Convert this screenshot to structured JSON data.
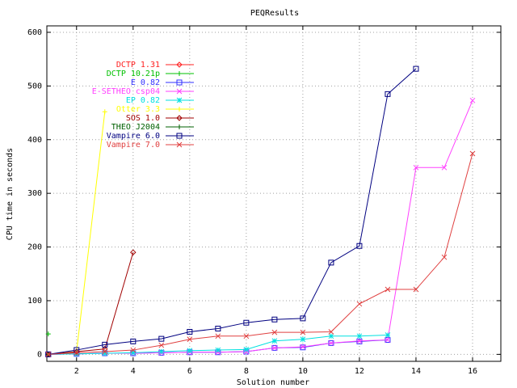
{
  "chart_data": {
    "type": "line",
    "title": "PEQResults",
    "x_label": "Solution number",
    "y_label": "CPU time in seconds",
    "xlim": [
      0.95,
      17
    ],
    "ylim": [
      -13,
      612
    ],
    "xticks": [
      2,
      4,
      6,
      8,
      10,
      12,
      14,
      16
    ],
    "yticks": [
      0,
      100,
      200,
      300,
      400,
      500,
      600
    ],
    "grid": true,
    "legend": "upper-left",
    "series": [
      {
        "name": "DCTP 1.31",
        "color": "#ff2020",
        "marker": "diamond",
        "x": [
          1,
          2
        ],
        "values": [
          0,
          2
        ]
      },
      {
        "name": "DCTP 10.21p",
        "color": "#00c000",
        "marker": "plus",
        "x": [
          1
        ],
        "values": [
          38
        ]
      },
      {
        "name": "E 0.82",
        "color": "#3030ff",
        "marker": "square",
        "x": [
          1,
          2,
          3,
          4,
          5,
          6,
          7,
          8,
          9,
          10,
          11,
          12,
          13
        ],
        "values": [
          0,
          1,
          2,
          2,
          3,
          4,
          4,
          5,
          12,
          13,
          21,
          24,
          27
        ]
      },
      {
        "name": "E-SETHEO csp04",
        "color": "#ff40ff",
        "marker": "cross",
        "x": [
          1,
          2,
          3,
          4,
          5,
          6,
          7,
          8,
          9,
          10,
          11,
          12,
          13,
          14,
          15,
          16
        ],
        "values": [
          0,
          1,
          2,
          2,
          3,
          4,
          4,
          5,
          12,
          14,
          21,
          25,
          27,
          348,
          348,
          473
        ]
      },
      {
        "name": "EP 0.82",
        "color": "#00e0e0",
        "marker": "star",
        "x": [
          1,
          2,
          3,
          4,
          5,
          6,
          7,
          8,
          9,
          10,
          11,
          12,
          13
        ],
        "values": [
          0,
          1,
          2,
          3,
          5,
          7,
          8,
          9,
          25,
          28,
          34,
          34,
          36
        ]
      },
      {
        "name": "Otter 3.3",
        "color": "#ffff00",
        "marker": "plus",
        "x": [
          1,
          2,
          3
        ],
        "values": [
          0,
          5,
          452
        ]
      },
      {
        "name": "SOS 1.0",
        "color": "#a00000",
        "marker": "diamond",
        "x": [
          1,
          2,
          3,
          4
        ],
        "values": [
          0,
          5,
          10,
          190
        ]
      },
      {
        "name": "THEO J2004",
        "color": "#006000",
        "marker": "plus",
        "x": [
          1
        ],
        "values": [
          0
        ]
      },
      {
        "name": "Vampire 6.0",
        "color": "#000080",
        "marker": "square",
        "x": [
          1,
          2,
          3,
          4,
          5,
          6,
          7,
          8,
          9,
          10,
          11,
          12,
          13,
          14
        ],
        "values": [
          0,
          8,
          18,
          24,
          29,
          42,
          48,
          59,
          65,
          67,
          171,
          202,
          485,
          532
        ]
      },
      {
        "name": "Vampire 7.0",
        "color": "#e04040",
        "marker": "cross",
        "x": [
          1,
          2,
          3,
          4,
          5,
          6,
          7,
          8,
          9,
          10,
          11,
          12,
          13,
          14,
          15,
          16
        ],
        "values": [
          0,
          3,
          5,
          8,
          17,
          28,
          34,
          34,
          41,
          41,
          42,
          94,
          121,
          121,
          181,
          374
        ]
      }
    ]
  }
}
